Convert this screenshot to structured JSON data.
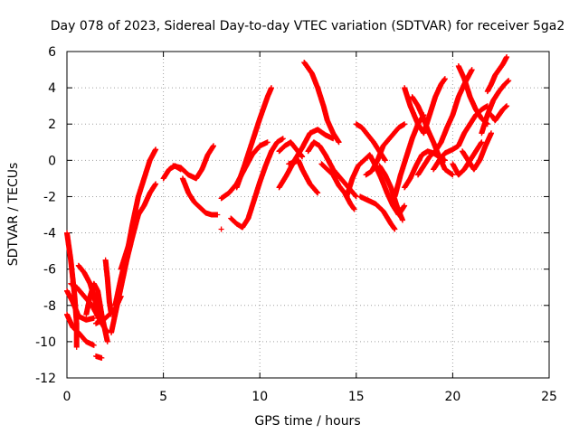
{
  "chart_data": {
    "type": "scatter",
    "title": "Day 078 of 2023, Sidereal Day-to-day VTEC variation (SDTVAR) for receiver 5ga2",
    "xlabel": "GPS time / hours",
    "ylabel": "SDTVAR / TECUs",
    "xlim": [
      0,
      25
    ],
    "ylim": [
      -12,
      6
    ],
    "xticks": [
      0,
      5,
      10,
      15,
      20,
      25
    ],
    "yticks": [
      -12,
      -10,
      -8,
      -6,
      -4,
      -2,
      0,
      2,
      4,
      6
    ],
    "grid": true,
    "marker": "+",
    "color": "#ff0000",
    "tracks": [
      [
        [
          0.0,
          -4.0
        ],
        [
          0.2,
          -5.5
        ],
        [
          0.4,
          -7.5
        ],
        [
          0.5,
          -9.0
        ],
        [
          0.5,
          -10.3
        ]
      ],
      [
        [
          0.0,
          -8.5
        ],
        [
          0.3,
          -9.2
        ],
        [
          0.6,
          -9.5
        ],
        [
          1.0,
          -10.0
        ],
        [
          1.4,
          -10.2
        ]
      ],
      [
        [
          0.0,
          -7.2
        ],
        [
          0.3,
          -7.8
        ],
        [
          0.6,
          -8.6
        ],
        [
          1.0,
          -8.8
        ],
        [
          1.4,
          -8.7
        ]
      ],
      [
        [
          0.2,
          -6.8
        ],
        [
          0.5,
          -7.0
        ],
        [
          0.9,
          -7.5
        ],
        [
          1.3,
          -8.0
        ],
        [
          1.7,
          -8.8
        ],
        [
          2.1,
          -9.5
        ]
      ],
      [
        [
          0.6,
          -5.8
        ],
        [
          0.9,
          -6.2
        ],
        [
          1.2,
          -6.8
        ],
        [
          1.4,
          -7.5
        ],
        [
          1.6,
          -8.3
        ],
        [
          1.8,
          -9.0
        ]
      ],
      [
        [
          1.0,
          -8.5
        ],
        [
          1.2,
          -7.5
        ],
        [
          1.4,
          -6.8
        ],
        [
          1.6,
          -7.2
        ],
        [
          1.8,
          -8.5
        ],
        [
          2.0,
          -9.5
        ],
        [
          2.1,
          -10.0
        ]
      ],
      [
        [
          1.5,
          -10.8
        ],
        [
          1.8,
          -10.9
        ]
      ],
      [
        [
          1.5,
          -9.0
        ],
        [
          2.0,
          -8.7
        ],
        [
          2.5,
          -8.2
        ],
        [
          2.8,
          -7.5
        ]
      ],
      [
        [
          2.0,
          -5.5
        ],
        [
          2.1,
          -6.5
        ],
        [
          2.2,
          -7.8
        ],
        [
          2.3,
          -8.5
        ]
      ],
      [
        [
          2.3,
          -9.5
        ],
        [
          2.5,
          -8.5
        ],
        [
          2.8,
          -7.0
        ],
        [
          3.1,
          -5.5
        ],
        [
          3.4,
          -4.2
        ],
        [
          3.7,
          -3.0
        ],
        [
          4.0,
          -2.5
        ],
        [
          4.3,
          -1.8
        ],
        [
          4.6,
          -1.3
        ]
      ],
      [
        [
          2.5,
          -8.0
        ],
        [
          2.8,
          -6.5
        ],
        [
          3.1,
          -5.2
        ],
        [
          3.4,
          -3.5
        ],
        [
          3.7,
          -2.0
        ],
        [
          4.0,
          -1.0
        ],
        [
          4.3,
          0.0
        ],
        [
          4.6,
          0.6
        ]
      ],
      [
        [
          2.8,
          -6.0
        ],
        [
          3.1,
          -5.0
        ],
        [
          3.4,
          -4.0
        ],
        [
          3.7,
          -3.0
        ]
      ],
      [
        [
          5.0,
          -1.0
        ],
        [
          5.3,
          -0.5
        ],
        [
          5.6,
          -0.3
        ],
        [
          5.9,
          -0.5
        ]
      ],
      [
        [
          5.5,
          -0.3
        ],
        [
          5.9,
          -0.4
        ],
        [
          6.3,
          -0.8
        ],
        [
          6.7,
          -1.0
        ],
        [
          7.0,
          -0.5
        ],
        [
          7.3,
          0.3
        ],
        [
          7.6,
          0.8
        ]
      ],
      [
        [
          6.0,
          -1.0
        ],
        [
          6.3,
          -1.8
        ],
        [
          6.6,
          -2.3
        ],
        [
          6.9,
          -2.6
        ],
        [
          7.2,
          -2.9
        ],
        [
          7.5,
          -3.0
        ],
        [
          7.8,
          -3.0
        ]
      ],
      [
        [
          8.0,
          -3.8
        ]
      ],
      [
        [
          8.0,
          -2.1
        ],
        [
          8.4,
          -1.8
        ],
        [
          8.8,
          -1.3
        ],
        [
          9.2,
          -0.5
        ],
        [
          9.6,
          0.3
        ],
        [
          10.0,
          0.8
        ],
        [
          10.4,
          1.0
        ]
      ],
      [
        [
          8.5,
          -3.2
        ],
        [
          8.8,
          -3.5
        ],
        [
          9.1,
          -3.7
        ],
        [
          9.4,
          -3.2
        ],
        [
          9.7,
          -2.2
        ],
        [
          10.0,
          -1.2
        ],
        [
          10.3,
          -0.3
        ],
        [
          10.6,
          0.5
        ],
        [
          10.9,
          1.0
        ],
        [
          11.2,
          1.2
        ]
      ],
      [
        [
          8.8,
          -1.5
        ],
        [
          9.2,
          -0.3
        ],
        [
          9.6,
          1.0
        ],
        [
          10.0,
          2.3
        ],
        [
          10.4,
          3.5
        ],
        [
          10.6,
          4.0
        ]
      ],
      [
        [
          11.0,
          0.5
        ],
        [
          11.3,
          0.8
        ],
        [
          11.6,
          1.0
        ],
        [
          11.9,
          0.6
        ],
        [
          12.2,
          0.2
        ]
      ],
      [
        [
          11.0,
          -1.5
        ],
        [
          11.4,
          -0.8
        ],
        [
          11.8,
          0.0
        ],
        [
          12.2,
          0.7
        ],
        [
          12.6,
          1.5
        ],
        [
          13.0,
          1.7
        ],
        [
          13.4,
          1.4
        ],
        [
          13.8,
          1.2
        ]
      ],
      [
        [
          11.5,
          -0.2
        ],
        [
          11.8,
          -0.1
        ],
        [
          12.0,
          0.0
        ],
        [
          12.2,
          -0.5
        ],
        [
          12.6,
          -1.3
        ],
        [
          13.0,
          -1.8
        ]
      ],
      [
        [
          12.3,
          5.4
        ],
        [
          12.7,
          4.8
        ],
        [
          13.0,
          4.0
        ],
        [
          13.3,
          3.0
        ],
        [
          13.5,
          2.2
        ],
        [
          13.8,
          1.5
        ],
        [
          14.1,
          1.0
        ]
      ],
      [
        [
          12.5,
          0.5
        ],
        [
          12.8,
          1.0
        ],
        [
          13.1,
          0.8
        ],
        [
          13.4,
          0.3
        ],
        [
          13.8,
          -0.5
        ],
        [
          14.2,
          -1.0
        ],
        [
          14.6,
          -1.5
        ],
        [
          15.0,
          -2.0
        ]
      ],
      [
        [
          13.2,
          -0.2
        ],
        [
          13.5,
          -0.5
        ],
        [
          13.8,
          -0.8
        ],
        [
          14.1,
          -1.4
        ],
        [
          14.4,
          -1.8
        ],
        [
          14.7,
          -2.4
        ],
        [
          14.9,
          -2.7
        ]
      ],
      [
        [
          14.5,
          -2.0
        ],
        [
          14.8,
          -1.0
        ],
        [
          15.1,
          -0.3
        ],
        [
          15.4,
          0.0
        ],
        [
          15.7,
          0.3
        ],
        [
          16.0,
          -0.3
        ],
        [
          16.3,
          -1.0
        ],
        [
          16.6,
          -1.8
        ],
        [
          16.9,
          -2.5
        ],
        [
          17.2,
          -3.0
        ],
        [
          17.5,
          -2.5
        ]
      ],
      [
        [
          15.0,
          2.0
        ],
        [
          15.3,
          1.8
        ],
        [
          15.6,
          1.4
        ],
        [
          15.9,
          1.0
        ],
        [
          16.2,
          0.5
        ],
        [
          16.5,
          0.0
        ]
      ],
      [
        [
          15.2,
          -2.0
        ],
        [
          15.6,
          -2.2
        ],
        [
          16.0,
          -2.4
        ],
        [
          16.4,
          -2.8
        ],
        [
          16.8,
          -3.5
        ],
        [
          17.0,
          -3.8
        ]
      ],
      [
        [
          15.5,
          -0.8
        ],
        [
          15.8,
          -0.6
        ],
        [
          16.1,
          0.0
        ],
        [
          16.4,
          0.8
        ],
        [
          16.8,
          1.3
        ],
        [
          17.2,
          1.8
        ],
        [
          17.5,
          2.0
        ]
      ],
      [
        [
          16.2,
          -0.3
        ],
        [
          16.5,
          -0.8
        ],
        [
          16.8,
          -1.5
        ],
        [
          17.1,
          -2.5
        ],
        [
          17.4,
          -3.3
        ]
      ],
      [
        [
          17.0,
          -2.0
        ],
        [
          17.3,
          -0.8
        ],
        [
          17.6,
          0.2
        ],
        [
          17.9,
          1.2
        ],
        [
          18.2,
          2.0
        ],
        [
          18.5,
          2.5
        ]
      ],
      [
        [
          17.5,
          -1.5
        ],
        [
          17.8,
          -1.0
        ],
        [
          18.1,
          -0.3
        ],
        [
          18.4,
          0.3
        ],
        [
          18.7,
          0.5
        ],
        [
          19.0,
          0.4
        ],
        [
          19.3,
          0.2
        ],
        [
          19.6,
          0.0
        ]
      ],
      [
        [
          17.9,
          3.5
        ],
        [
          18.2,
          3.0
        ],
        [
          18.5,
          2.3
        ],
        [
          18.7,
          1.7
        ],
        [
          19.0,
          1.0
        ],
        [
          19.3,
          0.2
        ],
        [
          19.6,
          -0.5
        ],
        [
          20.0,
          -0.8
        ]
      ],
      [
        [
          17.5,
          4.0
        ],
        [
          17.8,
          3.0
        ],
        [
          18.2,
          2.0
        ],
        [
          18.5,
          1.5
        ],
        [
          18.8,
          2.5
        ],
        [
          19.1,
          3.5
        ],
        [
          19.4,
          4.2
        ],
        [
          19.6,
          4.5
        ]
      ],
      [
        [
          18.2,
          -0.8
        ],
        [
          18.5,
          -0.3
        ],
        [
          18.8,
          0.2
        ],
        [
          19.1,
          0.5
        ],
        [
          19.4,
          1.0
        ],
        [
          19.7,
          1.8
        ],
        [
          20.0,
          2.5
        ],
        [
          20.3,
          3.5
        ],
        [
          20.6,
          4.2
        ],
        [
          21.0,
          5.0
        ]
      ],
      [
        [
          19.0,
          -0.5
        ],
        [
          19.3,
          0.0
        ],
        [
          19.6,
          0.4
        ],
        [
          20.0,
          0.6
        ],
        [
          20.3,
          0.8
        ],
        [
          20.6,
          1.5
        ],
        [
          20.9,
          2.0
        ],
        [
          21.2,
          2.5
        ],
        [
          21.5,
          2.8
        ],
        [
          21.8,
          3.0
        ]
      ],
      [
        [
          20.0,
          -0.2
        ],
        [
          20.3,
          -0.8
        ],
        [
          20.6,
          -0.5
        ],
        [
          20.9,
          0.0
        ],
        [
          21.2,
          0.5
        ],
        [
          21.5,
          1.0
        ]
      ],
      [
        [
          20.3,
          5.2
        ],
        [
          20.6,
          4.5
        ],
        [
          20.9,
          3.5
        ],
        [
          21.2,
          2.8
        ],
        [
          21.5,
          2.3
        ],
        [
          21.8,
          2.0
        ]
      ],
      [
        [
          20.5,
          0.5
        ],
        [
          20.8,
          0.0
        ],
        [
          21.1,
          -0.5
        ],
        [
          21.4,
          0.0
        ],
        [
          21.7,
          0.8
        ],
        [
          22.0,
          1.5
        ]
      ],
      [
        [
          21.5,
          1.5
        ],
        [
          21.8,
          2.5
        ],
        [
          22.1,
          3.3
        ],
        [
          22.4,
          3.8
        ],
        [
          22.7,
          4.2
        ],
        [
          22.9,
          4.4
        ]
      ],
      [
        [
          21.8,
          3.8
        ],
        [
          22.0,
          4.2
        ],
        [
          22.2,
          4.7
        ],
        [
          22.4,
          5.0
        ],
        [
          22.6,
          5.3
        ],
        [
          22.8,
          5.7
        ]
      ],
      [
        [
          22.0,
          2.5
        ],
        [
          22.2,
          2.2
        ],
        [
          22.4,
          2.5
        ],
        [
          22.6,
          2.8
        ],
        [
          22.8,
          3.0
        ]
      ]
    ]
  }
}
